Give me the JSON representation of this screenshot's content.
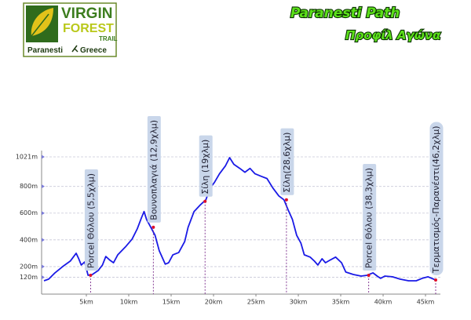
{
  "logo": {
    "word1": "VIRGIN",
    "word2": "FOREST",
    "word3": "TRAIL",
    "place": "Paranesti",
    "country": "Greece"
  },
  "chart_data": {
    "type": "line",
    "title": "Paranesti Path",
    "subtitle": "Προφίλ Αγώνα",
    "x": [
      0,
      0.56,
      1.3,
      2.2,
      3.1,
      3.8,
      4.1,
      4.4,
      4.8,
      5.2,
      5.7,
      6.4,
      6.9,
      7.3,
      7.8,
      8.2,
      8.7,
      9.6,
      10.4,
      11.0,
      11.5,
      11.8,
      12.1,
      12.6,
      13.1,
      13.6,
      14.3,
      14.7,
      15.2,
      15.9,
      16.6,
      17.0,
      17.7,
      18.4,
      19.1,
      19.6,
      20.1,
      20.7,
      21.4,
      21.9,
      22.4,
      23.1,
      23.7,
      24.3,
      24.9,
      25.6,
      26.3,
      27.0,
      27.7,
      28.3,
      28.8,
      29.3,
      29.8,
      30.3,
      30.7,
      31.4,
      31.9,
      32.3,
      32.8,
      33.2,
      33.7,
      34.4,
      35.1,
      35.6,
      36.5,
      37.4,
      38.1,
      38.8,
      39.3,
      39.7,
      40.2,
      41.1,
      42.0,
      43.0,
      43.9,
      44.6,
      45.3,
      46.2
    ],
    "values": [
      94,
      106,
      153,
      200,
      241,
      300,
      259,
      212,
      235,
      135,
      141,
      171,
      212,
      276,
      247,
      229,
      288,
      347,
      406,
      482,
      565,
      612,
      553,
      494,
      435,
      318,
      218,
      229,
      288,
      306,
      388,
      494,
      612,
      659,
      700,
      788,
      829,
      894,
      953,
      1015,
      965,
      935,
      906,
      935,
      894,
      876,
      859,
      788,
      729,
      700,
      624,
      553,
      435,
      376,
      288,
      271,
      241,
      212,
      259,
      229,
      247,
      271,
      229,
      159,
      141,
      129,
      135,
      153,
      129,
      112,
      129,
      124,
      106,
      94,
      94,
      112,
      124,
      100
    ],
    "color": "#1a1ae6",
    "xlim": [
      0,
      46.2
    ],
    "ylim": [
      0,
      1021
    ],
    "xticks": [
      {
        "value": 5,
        "label": "5km"
      },
      {
        "value": 10,
        "label": "10km"
      },
      {
        "value": 15,
        "label": "15km"
      },
      {
        "value": 20,
        "label": "20km"
      },
      {
        "value": 25,
        "label": "25km"
      },
      {
        "value": 30,
        "label": "30km"
      },
      {
        "value": 35,
        "label": "35km"
      },
      {
        "value": 40,
        "label": "40km"
      },
      {
        "value": 45,
        "label": "45km"
      }
    ],
    "yticks": [
      {
        "value": 120,
        "label": "120m"
      },
      {
        "value": 200,
        "label": "200m"
      },
      {
        "value": 400,
        "label": "400m"
      },
      {
        "value": 600,
        "label": "600m"
      },
      {
        "value": 800,
        "label": "800m"
      },
      {
        "value": 1021,
        "label": "1021m"
      }
    ],
    "grid": true,
    "annotations": [
      {
        "x": 5.5,
        "y": 135,
        "text": "Porcel Θόλου (5,5χλμ)"
      },
      {
        "x": 12.9,
        "y": 494,
        "text": "Βουνοπλαγιά (12,9χλμ)"
      },
      {
        "x": 19,
        "y": 688,
        "text": "Σίλη (19χλμ)"
      },
      {
        "x": 28.6,
        "y": 700,
        "text": "Σίλη(28,6χλμ)"
      },
      {
        "x": 38.3,
        "y": 135,
        "text": "Porcel Θόλου (38,3χλμ)"
      },
      {
        "x": 46.2,
        "y": 100,
        "text": "Τερματισμός-Παρανέστι(46,2χλμ)"
      }
    ]
  }
}
